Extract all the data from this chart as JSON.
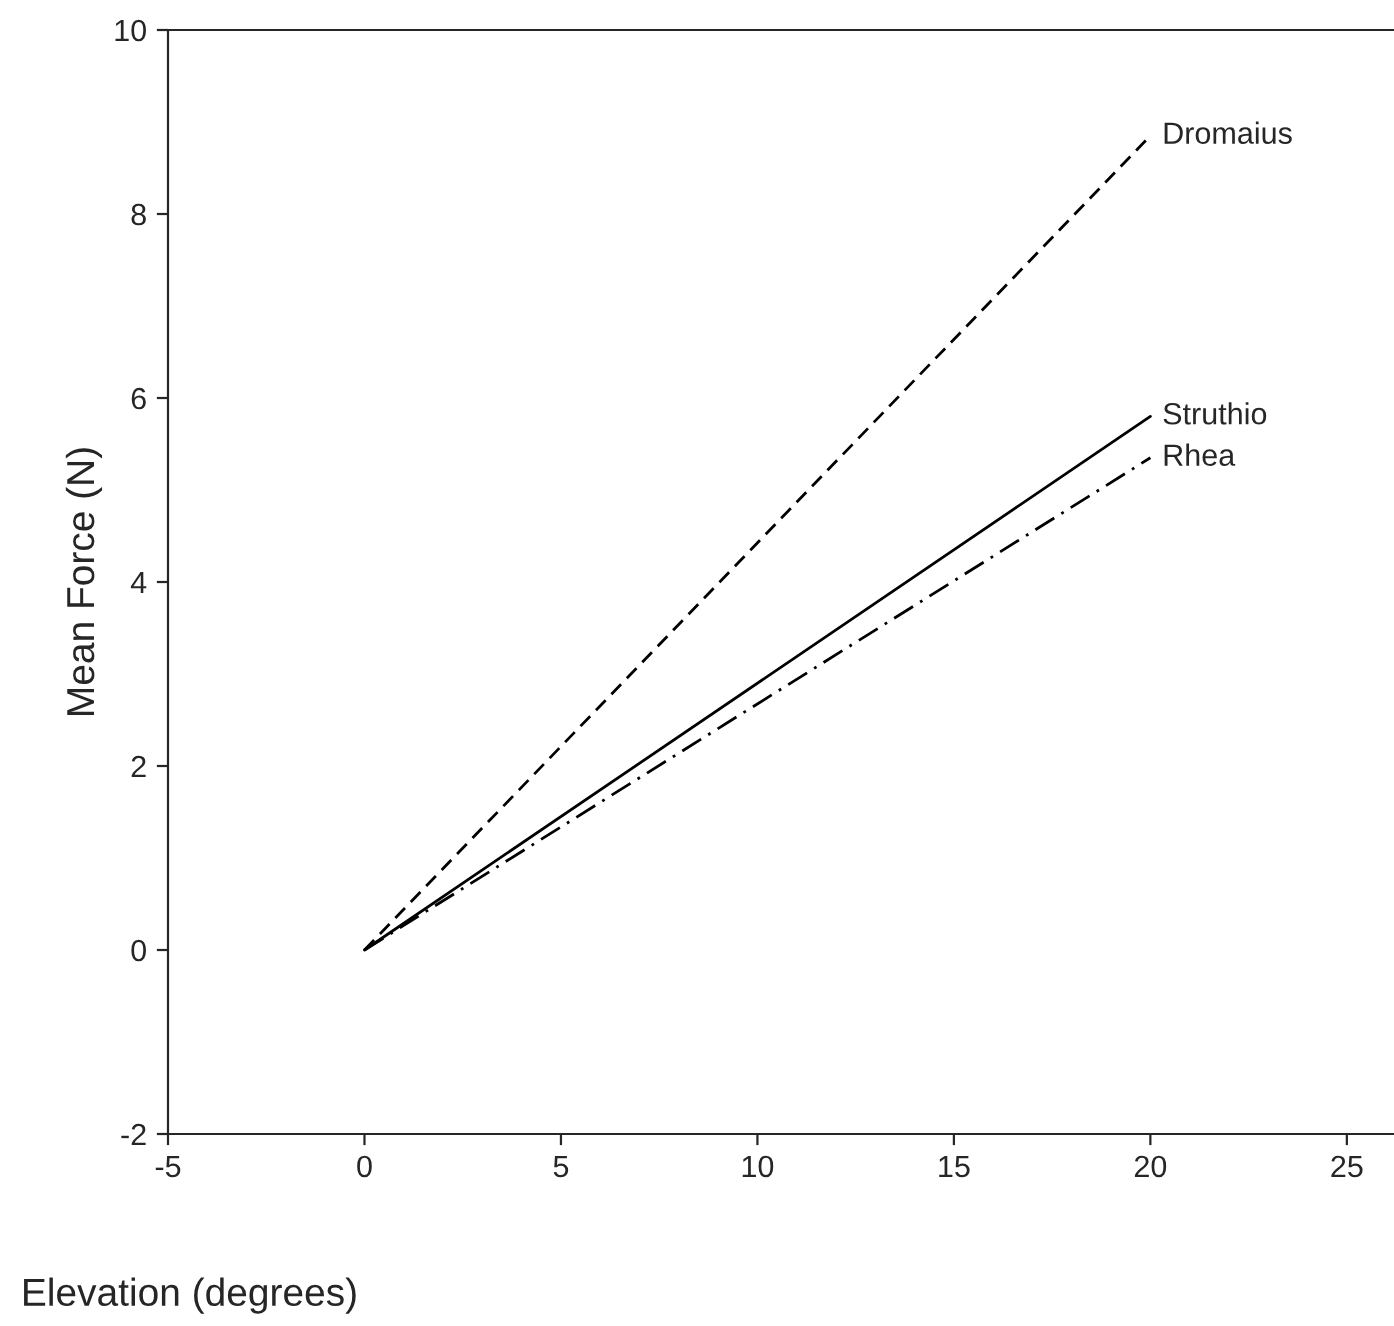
{
  "chart_data": {
    "type": "line",
    "xlabel": "Elevation (degrees)",
    "ylabel": "Mean Force (N)",
    "x": [
      0,
      20
    ],
    "series": [
      {
        "name": "Dromaius",
        "color": "#000000",
        "values": [
          0,
          8.85
        ],
        "line_style": "dashed"
      },
      {
        "name": "Struthio",
        "color": "#000000",
        "values": [
          0,
          5.8
        ],
        "line_style": "solid"
      },
      {
        "name": "Rhea",
        "color": "#000000",
        "values": [
          0,
          5.35
        ],
        "line_style": "dashdot"
      }
    ],
    "xlim": [
      -5,
      26.2
    ],
    "ylim": [
      -2,
      10
    ],
    "xticks": [
      -5,
      0,
      5,
      10,
      15,
      20,
      25
    ],
    "yticks": [
      -2,
      0,
      2,
      4,
      6,
      8,
      10
    ],
    "grid": false,
    "legend": false
  }
}
